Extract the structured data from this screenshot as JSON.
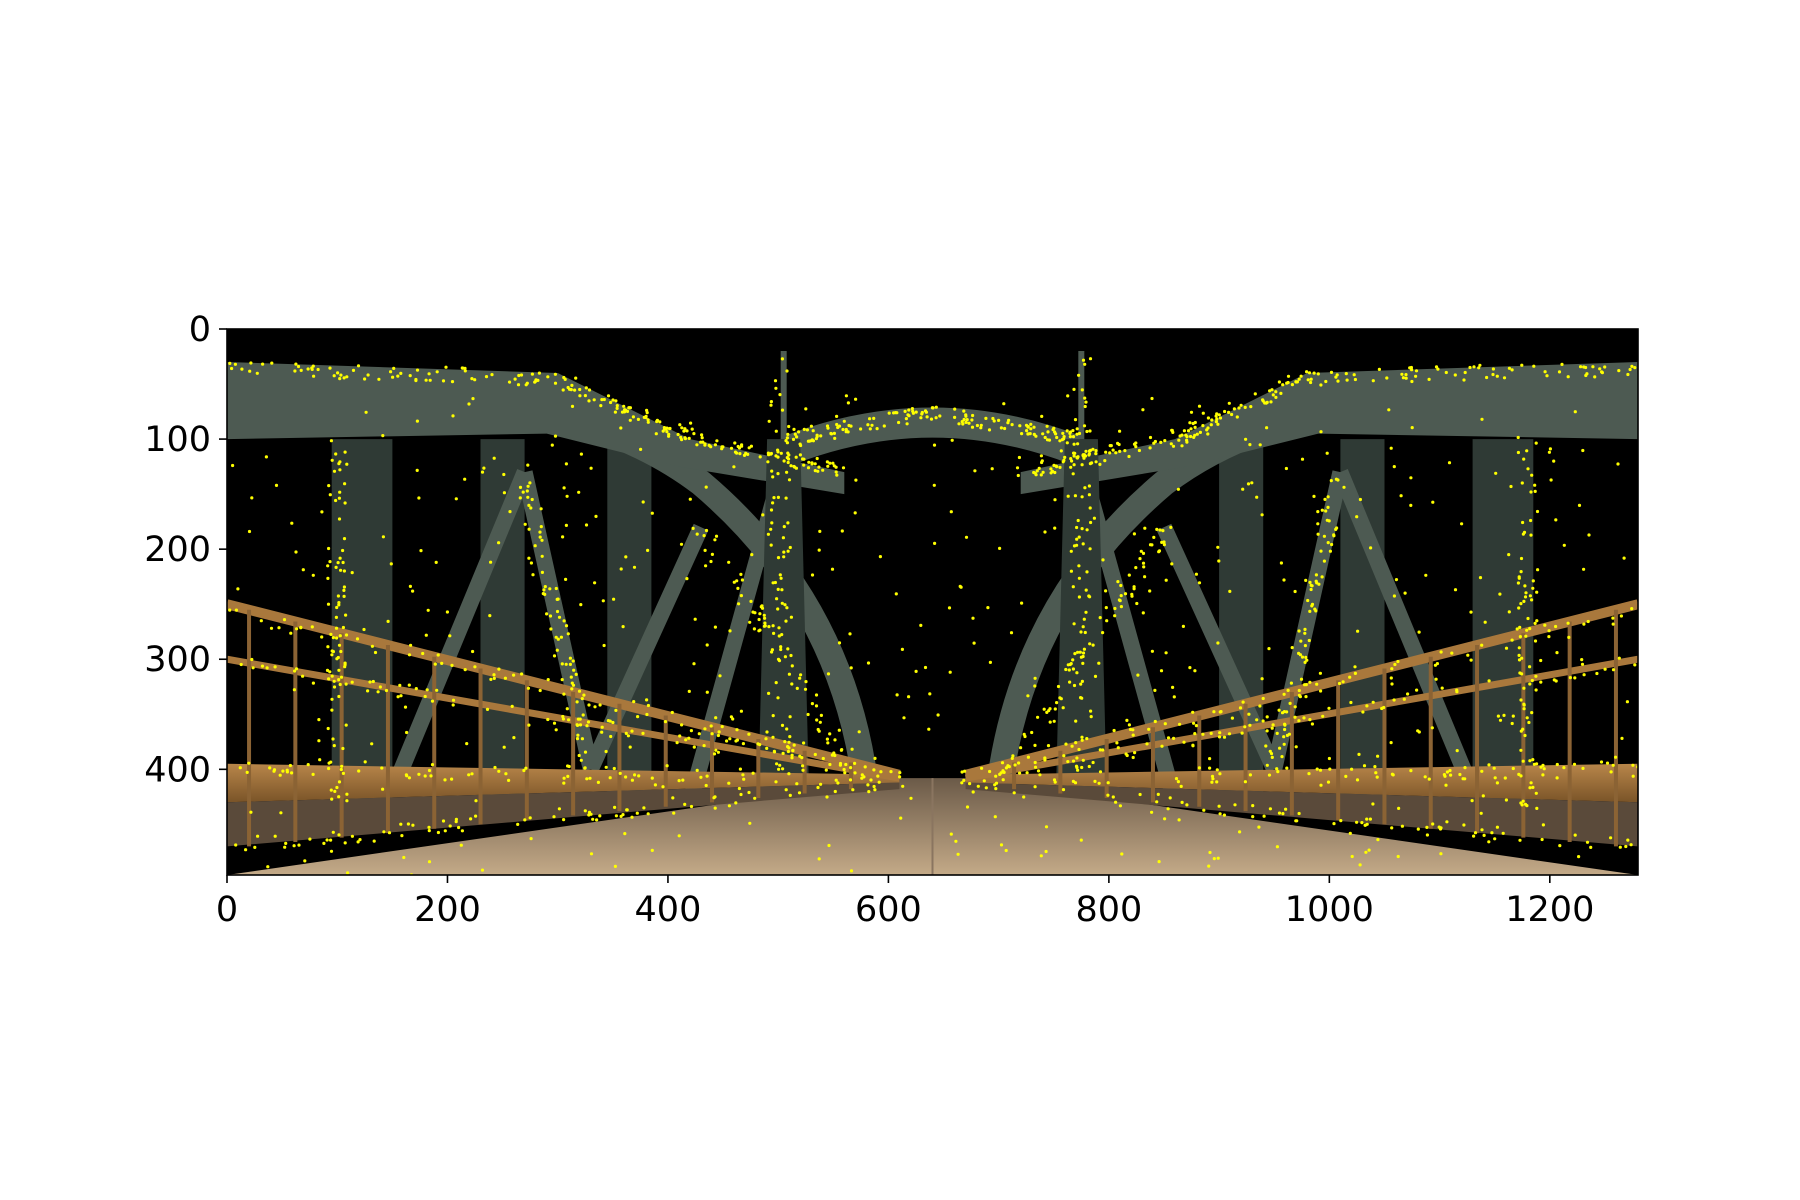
{
  "chart_data": {
    "type": "image",
    "title": "",
    "xlabel": "",
    "ylabel": "",
    "xlim": [
      0,
      1280
    ],
    "ylim": [
      496,
      0
    ],
    "x_ticks": [
      {
        "value": 0,
        "label": "0"
      },
      {
        "value": 200,
        "label": "200"
      },
      {
        "value": 400,
        "label": "400"
      },
      {
        "value": 600,
        "label": "600"
      },
      {
        "value": 800,
        "label": "800"
      },
      {
        "value": 1000,
        "label": "1000"
      },
      {
        "value": 1200,
        "label": "1200"
      }
    ],
    "y_ticks": [
      {
        "value": 0,
        "label": "0"
      },
      {
        "value": 100,
        "label": "100"
      },
      {
        "value": 200,
        "label": "200"
      },
      {
        "value": 300,
        "label": "300"
      },
      {
        "value": 400,
        "label": "400"
      }
    ],
    "grid": false,
    "image_content": "steel truss bridge with road and railings on black background, overlaid with detected keypoints",
    "keypoint_color": "#ffff00",
    "colors": {
      "sky": "#000000",
      "steel": "#4d5a52",
      "steel_dark": "#2f3a35",
      "railing": "#a9783c",
      "road": "#b59a7a"
    }
  }
}
